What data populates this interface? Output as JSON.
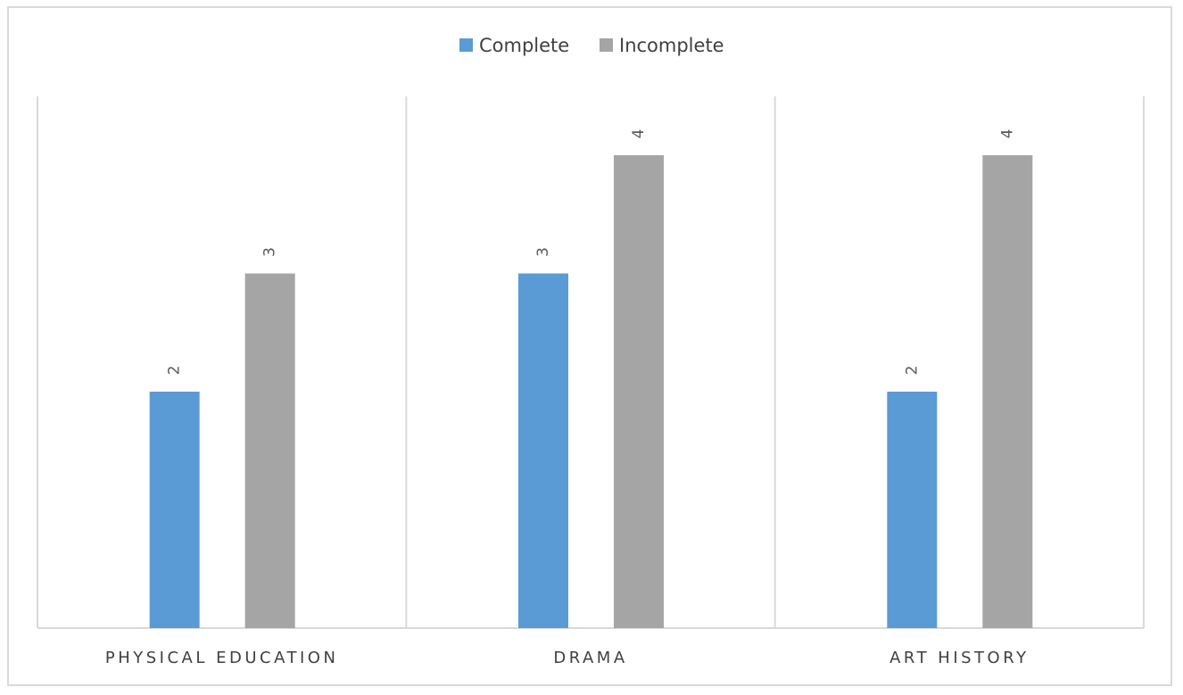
{
  "chart_data": {
    "type": "bar",
    "categories": [
      "PHYSICAL EDUCATION",
      "DRAMA",
      "ART HISTORY"
    ],
    "series": [
      {
        "name": "Complete",
        "values": [
          2,
          3,
          2
        ],
        "color": "#5b9bd5"
      },
      {
        "name": "Incomplete",
        "values": [
          3,
          4,
          4
        ],
        "color": "#a5a5a5"
      }
    ],
    "title": "",
    "xlabel": "",
    "ylabel": "",
    "ylim": [
      0,
      4.5
    ],
    "legend": "top-center",
    "data_labels": true,
    "grid": false,
    "colors": {
      "axis": "#d9d9d9",
      "text": "#404040",
      "label": "#595959"
    }
  }
}
